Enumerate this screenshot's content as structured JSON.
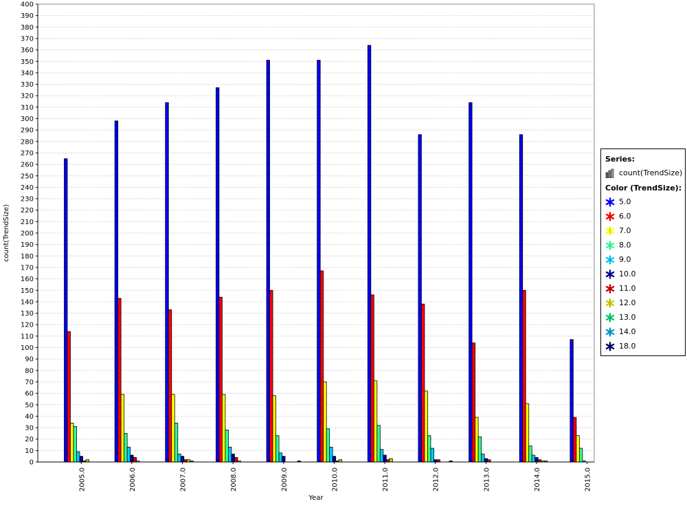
{
  "chart_data": {
    "type": "bar",
    "xlabel": "Year",
    "ylabel": "count(TrendSize)",
    "ylim": [
      0,
      400
    ],
    "ytick_step": 10,
    "grid": true,
    "legend_position": "right",
    "categories": [
      "2005.0",
      "2006.0",
      "2007.0",
      "2008.0",
      "2009.0",
      "2010.0",
      "2011.0",
      "2012.0",
      "2013.0",
      "2014.0",
      "2015.0"
    ],
    "series": [
      {
        "name": "5.0",
        "color": "#0000ff",
        "values": [
          265,
          298,
          314,
          327,
          351,
          351,
          364,
          286,
          314,
          286,
          107
        ]
      },
      {
        "name": "6.0",
        "color": "#ff0000",
        "values": [
          114,
          143,
          133,
          144,
          150,
          167,
          146,
          138,
          104,
          150,
          39
        ]
      },
      {
        "name": "7.0",
        "color": "#ffff00",
        "values": [
          34,
          59,
          59,
          59,
          58,
          70,
          71,
          62,
          39,
          51,
          23
        ]
      },
      {
        "name": "8.0",
        "color": "#33ff99",
        "values": [
          31,
          25,
          34,
          28,
          23,
          29,
          32,
          23,
          22,
          14,
          12
        ]
      },
      {
        "name": "9.0",
        "color": "#00ccff",
        "values": [
          9,
          13,
          7,
          13,
          8,
          13,
          11,
          12,
          7,
          6,
          1
        ]
      },
      {
        "name": "10.0",
        "color": "#000099",
        "values": [
          5,
          6,
          5,
          7,
          5,
          5,
          6,
          2,
          3,
          4,
          0
        ]
      },
      {
        "name": "11.0",
        "color": "#cc0000",
        "values": [
          1,
          4,
          2,
          4,
          0,
          1,
          2,
          2,
          2,
          2,
          0
        ]
      },
      {
        "name": "12.0",
        "color": "#cccc00",
        "values": [
          2,
          1,
          2,
          1,
          0,
          2,
          3,
          0,
          0,
          1,
          0
        ]
      },
      {
        "name": "13.0",
        "color": "#00cc66",
        "values": [
          0,
          0,
          1,
          0,
          0,
          0,
          0,
          0,
          0,
          1,
          0
        ]
      },
      {
        "name": "14.0",
        "color": "#0099cc",
        "values": [
          0,
          0,
          0,
          0,
          0,
          0,
          0,
          0,
          0,
          0,
          0
        ]
      },
      {
        "name": "18.0",
        "color": "#000066",
        "values": [
          0,
          0,
          0,
          0,
          1,
          0,
          0,
          1,
          0,
          0,
          0
        ]
      }
    ]
  },
  "legend": {
    "series_header": "Series:",
    "series_label": "count(TrendSize)",
    "color_header": "Color (TrendSize):",
    "items": [
      "5.0",
      "6.0",
      "7.0",
      "8.0",
      "9.0",
      "10.0",
      "11.0",
      "12.0",
      "13.0",
      "14.0",
      "18.0"
    ]
  }
}
